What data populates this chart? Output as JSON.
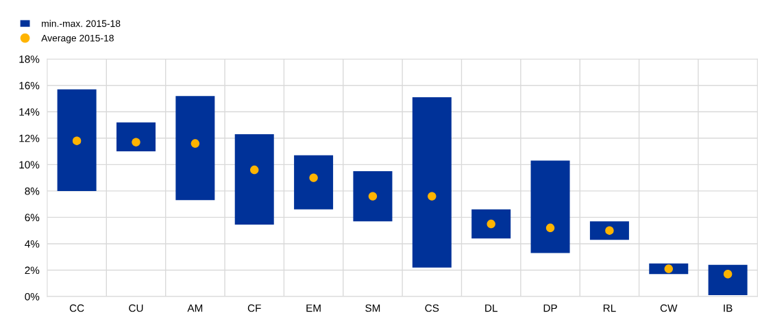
{
  "chart_data": {
    "type": "bar",
    "categories": [
      "CC",
      "CU",
      "AM",
      "CF",
      "EM",
      "SM",
      "CS",
      "DL",
      "DP",
      "RL",
      "CW",
      "IB"
    ],
    "series": [
      {
        "name": "min.-max. 2015-18",
        "color": "#003299",
        "base": [
          8.0,
          11.0,
          7.3,
          5.45,
          6.6,
          5.7,
          2.2,
          4.4,
          3.3,
          4.3,
          1.7,
          0.1
        ],
        "values": [
          7.7,
          2.2,
          7.9,
          6.85,
          4.1,
          3.8,
          12.9,
          2.2,
          7.0,
          1.4,
          0.8,
          2.3
        ]
      },
      {
        "name": "Average 2015-18",
        "type": "scatter",
        "color": "#ffb400",
        "x": [
          "CC",
          "CU",
          "AM",
          "CF",
          "EM",
          "SM",
          "CS",
          "DL",
          "DP",
          "RL",
          "CW",
          "IB"
        ],
        "values": [
          11.8,
          11.7,
          11.6,
          9.6,
          9.0,
          7.6,
          7.6,
          5.5,
          5.2,
          5.0,
          2.1,
          1.7
        ]
      }
    ],
    "ylim": [
      0,
      18
    ],
    "yticks": [
      {
        "value": 0,
        "label": "0%"
      },
      {
        "value": 2,
        "label": "2%"
      },
      {
        "value": 4,
        "label": "4%"
      },
      {
        "value": 6,
        "label": "6%"
      },
      {
        "value": 8,
        "label": "8%"
      },
      {
        "value": 10,
        "label": "10%"
      },
      {
        "value": 12,
        "label": "12%"
      },
      {
        "value": 14,
        "label": "14%"
      },
      {
        "value": 16,
        "label": "16%"
      },
      {
        "value": 18,
        "label": "18%"
      }
    ],
    "grid": true,
    "legend": "top left",
    "marker": "circle"
  }
}
